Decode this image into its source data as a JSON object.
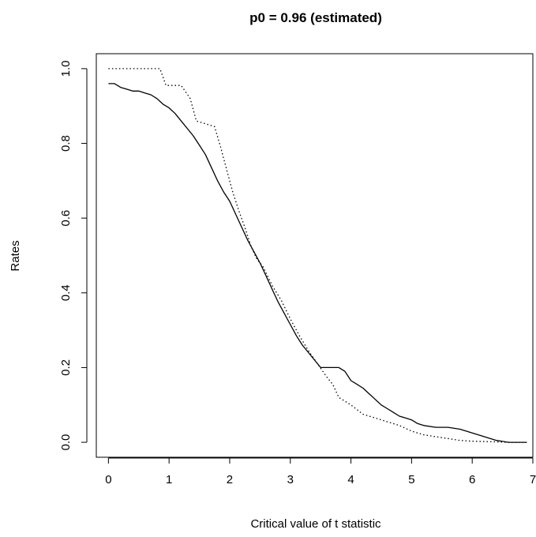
{
  "chart_data": {
    "type": "line",
    "title": "p0 = 0.96 (estimated)",
    "xlabel": "Critical value of t statistic",
    "ylabel": "Rates",
    "xlim": [
      -0.2,
      7.0
    ],
    "ylim": [
      -0.04,
      1.04
    ],
    "x_ticks": [
      "0",
      "1",
      "2",
      "3",
      "4",
      "5",
      "6",
      "7"
    ],
    "y_ticks": [
      "0.0",
      "0.2",
      "0.4",
      "0.6",
      "0.8",
      "1.0"
    ],
    "grid": false,
    "series": [
      {
        "style": "solid",
        "color": "#000000",
        "x": [
          0.0,
          0.1,
          0.15,
          0.2,
          0.3,
          0.4,
          0.5,
          0.6,
          0.7,
          0.8,
          0.9,
          1.0,
          1.1,
          1.2,
          1.3,
          1.4,
          1.5,
          1.6,
          1.7,
          1.8,
          1.9,
          2.0,
          2.1,
          2.2,
          2.3,
          2.4,
          2.5,
          2.6,
          2.7,
          2.8,
          2.9,
          3.0,
          3.1,
          3.2,
          3.3,
          3.4,
          3.5,
          3.6,
          3.7,
          3.8,
          3.9,
          4.0,
          4.1,
          4.2,
          4.3,
          4.4,
          4.5,
          4.6,
          4.7,
          4.8,
          4.9,
          5.0,
          5.1,
          5.2,
          5.4,
          5.6,
          5.8,
          6.0,
          6.2,
          6.4,
          6.6,
          6.7,
          6.9
        ],
        "y": [
          0.96,
          0.96,
          0.955,
          0.95,
          0.945,
          0.94,
          0.94,
          0.935,
          0.93,
          0.92,
          0.905,
          0.895,
          0.88,
          0.86,
          0.84,
          0.82,
          0.795,
          0.77,
          0.735,
          0.7,
          0.67,
          0.645,
          0.61,
          0.575,
          0.54,
          0.51,
          0.48,
          0.445,
          0.41,
          0.375,
          0.345,
          0.315,
          0.285,
          0.26,
          0.24,
          0.22,
          0.2,
          0.2,
          0.2,
          0.2,
          0.19,
          0.165,
          0.155,
          0.145,
          0.13,
          0.115,
          0.1,
          0.09,
          0.08,
          0.07,
          0.065,
          0.06,
          0.05,
          0.045,
          0.04,
          0.04,
          0.035,
          0.025,
          0.015,
          0.005,
          0.0,
          0.0,
          0.0
        ]
      },
      {
        "style": "dotted",
        "color": "#000000",
        "x": [
          0.0,
          0.85,
          0.95,
          1.0,
          1.2,
          1.35,
          1.45,
          1.55,
          1.65,
          1.75,
          1.85,
          1.95,
          2.05,
          2.15,
          2.25,
          2.35,
          2.45,
          2.55,
          2.7,
          2.85,
          3.0,
          3.15,
          3.3,
          3.45,
          3.6,
          3.7,
          3.8,
          3.9,
          4.0,
          4.2,
          4.4,
          4.6,
          4.8,
          5.0,
          5.2,
          5.4,
          5.6,
          5.8,
          6.0,
          6.2,
          6.4,
          6.6,
          6.9
        ],
        "y": [
          1.0,
          1.0,
          0.955,
          0.955,
          0.955,
          0.92,
          0.86,
          0.855,
          0.85,
          0.845,
          0.79,
          0.73,
          0.67,
          0.62,
          0.575,
          0.525,
          0.49,
          0.47,
          0.42,
          0.38,
          0.33,
          0.285,
          0.245,
          0.21,
          0.175,
          0.155,
          0.12,
          0.11,
          0.1,
          0.075,
          0.065,
          0.055,
          0.045,
          0.03,
          0.02,
          0.015,
          0.01,
          0.005,
          0.003,
          0.002,
          0.001,
          0.0,
          0.0
        ]
      }
    ]
  }
}
